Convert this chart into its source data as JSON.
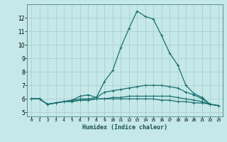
{
  "xlabel": "Humidex (Indice chaleur)",
  "ylabel": "",
  "bg_color": "#c5e8e8",
  "grid_color": "#aecece",
  "line_color": "#1a7070",
  "spine_color": "#5a9090",
  "x_ticks": [
    0,
    1,
    2,
    3,
    4,
    5,
    6,
    7,
    8,
    9,
    10,
    11,
    12,
    13,
    14,
    15,
    16,
    17,
    18,
    19,
    20,
    21,
    22,
    23
  ],
  "y_ticks": [
    5,
    6,
    7,
    8,
    9,
    10,
    11,
    12
  ],
  "ylim": [
    4.7,
    13.0
  ],
  "xlim": [
    -0.5,
    23.5
  ],
  "series": [
    {
      "x": [
        0,
        1,
        2,
        3,
        4,
        5,
        6,
        7,
        8,
        9,
        10,
        11,
        12,
        13,
        14,
        15,
        16,
        17,
        18,
        19,
        20,
        21,
        22,
        23
      ],
      "y": [
        6.0,
        6.0,
        5.6,
        5.7,
        5.8,
        5.9,
        6.2,
        6.3,
        6.1,
        7.3,
        8.1,
        9.8,
        11.2,
        12.5,
        12.1,
        11.9,
        10.7,
        9.4,
        8.5,
        7.0,
        6.4,
        6.1,
        5.6,
        5.5
      ]
    },
    {
      "x": [
        0,
        1,
        2,
        3,
        4,
        5,
        6,
        7,
        8,
        9,
        10,
        11,
        12,
        13,
        14,
        15,
        16,
        17,
        18,
        19,
        20,
        21,
        22,
        23
      ],
      "y": [
        6.0,
        6.0,
        5.6,
        5.7,
        5.8,
        5.9,
        6.0,
        6.0,
        6.1,
        6.5,
        6.6,
        6.7,
        6.8,
        6.9,
        7.0,
        7.0,
        7.0,
        6.9,
        6.8,
        6.5,
        6.3,
        6.0,
        5.6,
        5.5
      ]
    },
    {
      "x": [
        0,
        1,
        2,
        3,
        4,
        5,
        6,
        7,
        8,
        9,
        10,
        11,
        12,
        13,
        14,
        15,
        16,
        17,
        18,
        19,
        20,
        21,
        22,
        23
      ],
      "y": [
        6.0,
        6.0,
        5.6,
        5.7,
        5.8,
        5.8,
        5.9,
        5.9,
        6.0,
        6.0,
        6.1,
        6.1,
        6.2,
        6.2,
        6.2,
        6.2,
        6.2,
        6.2,
        6.1,
        6.0,
        5.9,
        5.8,
        5.6,
        5.5
      ]
    },
    {
      "x": [
        0,
        1,
        2,
        3,
        4,
        5,
        6,
        7,
        8,
        9,
        10,
        11,
        12,
        13,
        14,
        15,
        16,
        17,
        18,
        19,
        20,
        21,
        22,
        23
      ],
      "y": [
        6.0,
        6.0,
        5.6,
        5.7,
        5.8,
        5.8,
        5.9,
        5.9,
        6.0,
        6.0,
        6.0,
        6.0,
        6.0,
        6.0,
        6.0,
        6.0,
        5.9,
        5.9,
        5.8,
        5.8,
        5.7,
        5.7,
        5.6,
        5.5
      ]
    }
  ],
  "marker": "+",
  "markersize": 3,
  "linewidth": 0.9
}
